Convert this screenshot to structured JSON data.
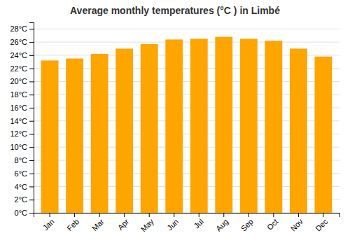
{
  "chart_data": {
    "type": "bar",
    "title": "Average monthly temperatures (°C ) in Limbé",
    "categories": [
      "Jan",
      "Feb",
      "Mar",
      "Apr",
      "May",
      "Jun",
      "Jul",
      "Aug",
      "Sep",
      "Oct",
      "Nov",
      "Dec"
    ],
    "values": [
      23.2,
      23.5,
      24.2,
      25.0,
      25.7,
      26.4,
      26.5,
      26.8,
      26.5,
      26.2,
      25.0,
      23.8
    ],
    "color": "#FFA500",
    "ylim": [
      0,
      29
    ],
    "yticks": [
      {
        "value": 0,
        "label": "0°C"
      },
      {
        "value": 2,
        "label": "2°C"
      },
      {
        "value": 4,
        "label": "4°C"
      },
      {
        "value": 6,
        "label": "6°C"
      },
      {
        "value": 8,
        "label": "8°C"
      },
      {
        "value": 10,
        "label": "10°C"
      },
      {
        "value": 12,
        "label": "12°C"
      },
      {
        "value": 14,
        "label": "14°C"
      },
      {
        "value": 16,
        "label": "16°C"
      },
      {
        "value": 18,
        "label": "18°C"
      },
      {
        "value": 20,
        "label": "20°C"
      },
      {
        "value": 22,
        "label": "22°C"
      },
      {
        "value": 24,
        "label": "24°C"
      },
      {
        "value": 26,
        "label": "26°C"
      },
      {
        "value": 28,
        "label": "28°C"
      }
    ],
    "grid": true
  }
}
